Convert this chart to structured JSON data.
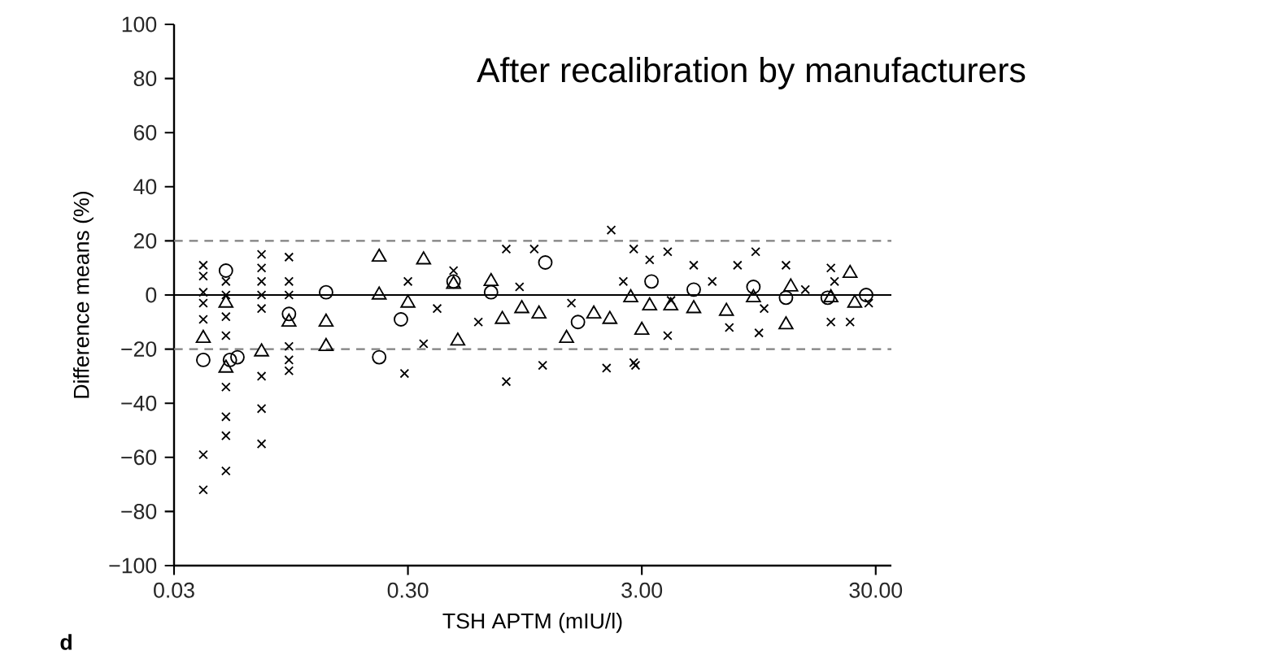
{
  "chart_data": {
    "type": "scatter",
    "title": "After recalibration by manufacturers",
    "xlabel": "TSH APTM (mIU/l)",
    "ylabel": "Difference means (%)",
    "annotations": [
      "d"
    ],
    "log": "x",
    "xlim": [
      0.03,
      35
    ],
    "ylim": [
      -100,
      100
    ],
    "xticks": [
      {
        "value": 0.03,
        "label": "0.03"
      },
      {
        "value": 0.3,
        "label": "0.30"
      },
      {
        "value": 3,
        "label": "3.00"
      },
      {
        "value": 30,
        "label": "30.00"
      }
    ],
    "yticks": [
      {
        "value": -100,
        "label": "−100"
      },
      {
        "value": -80,
        "label": "−80"
      },
      {
        "value": -60,
        "label": "−60"
      },
      {
        "value": -40,
        "label": "−40"
      },
      {
        "value": -20,
        "label": "−20"
      },
      0,
      20,
      40,
      60,
      80,
      100
    ],
    "ref_lines": [
      {
        "axis": "y",
        "value": 20,
        "color": "#808080",
        "line_style": "dashed"
      },
      {
        "axis": "y",
        "value": -20,
        "color": "#808080",
        "line_style": "dashed"
      },
      {
        "axis": "y",
        "value": 0,
        "color": "#000000",
        "line_style": "solid"
      }
    ],
    "series": [
      {
        "marker": "cross",
        "color": "#000000",
        "x": [
          0.04,
          0.04,
          0.04,
          0.04,
          0.04,
          0.04,
          0.04,
          0.05,
          0.05,
          0.05,
          0.05,
          0.05,
          0.05,
          0.05,
          0.05,
          0.071,
          0.071,
          0.071,
          0.071,
          0.071,
          0.071,
          0.071,
          0.071,
          0.093,
          0.093,
          0.093,
          0.093,
          0.093,
          0.093,
          0.29,
          0.35,
          0.79,
          1.13,
          2.12,
          2.77,
          0.79,
          1.04,
          2.77,
          0.47,
          2.22,
          3.24,
          3.87,
          3.87,
          5.0,
          7.1,
          9.2,
          9.5,
          12.4,
          19.3,
          19.3,
          23.3,
          2.82,
          7.7,
          0.3,
          0.4,
          0.6,
          0.9,
          1.5,
          2.5,
          4.0,
          6.0,
          10.0,
          15.0,
          20.0,
          28.0
        ],
        "values": [
          11,
          7,
          1,
          -3,
          -9,
          -59,
          -72,
          5,
          0,
          -8,
          -15,
          -34,
          -45,
          -52,
          -65,
          15,
          10,
          5,
          0,
          -5,
          -30,
          -42,
          -55,
          14,
          5,
          0,
          -19,
          -24,
          -28,
          -29,
          -18,
          -32,
          -26,
          -27,
          -25,
          17,
          17,
          17,
          9,
          24,
          13,
          16,
          -15,
          11,
          -12,
          16,
          -14,
          11,
          10,
          -10,
          -10,
          -26,
          11,
          5,
          -5,
          -10,
          3,
          -3,
          5,
          -2,
          5,
          -5,
          2,
          5,
          -3
        ]
      },
      {
        "marker": "circle",
        "color": "#000000",
        "x": [
          0.04,
          0.05,
          0.052,
          0.056,
          0.093,
          0.134,
          0.226,
          0.47,
          1.16,
          0.28,
          1.6,
          0.68,
          3.3,
          5.0,
          12.4,
          18.7,
          27.3,
          9.0
        ],
        "values": [
          -24,
          9,
          -24,
          -23,
          -7,
          1,
          -23,
          5,
          12,
          -9,
          -10,
          1,
          5,
          2,
          -1,
          -1,
          0,
          3
        ]
      },
      {
        "marker": "triangle",
        "color": "#000000",
        "x": [
          0.04,
          0.05,
          0.05,
          0.071,
          0.093,
          0.134,
          0.134,
          0.226,
          0.226,
          0.35,
          0.47,
          0.49,
          0.76,
          0.92,
          1.09,
          1.43,
          1.87,
          2.19,
          2.69,
          0.68,
          0.3,
          3.0,
          3.24,
          3.99,
          5.0,
          6.9,
          9.0,
          12.4,
          13.0,
          19.3,
          23.3,
          24.4
        ],
        "values": [
          -16,
          -27,
          -3,
          -21,
          -10,
          -10,
          -19,
          14,
          0,
          13,
          4,
          -17,
          -9,
          -5,
          -7,
          -16,
          -7,
          -9,
          -1,
          5,
          -3,
          -13,
          -4,
          -4,
          -5,
          -6,
          -1,
          -11,
          3,
          -1,
          8,
          -3
        ]
      }
    ]
  }
}
